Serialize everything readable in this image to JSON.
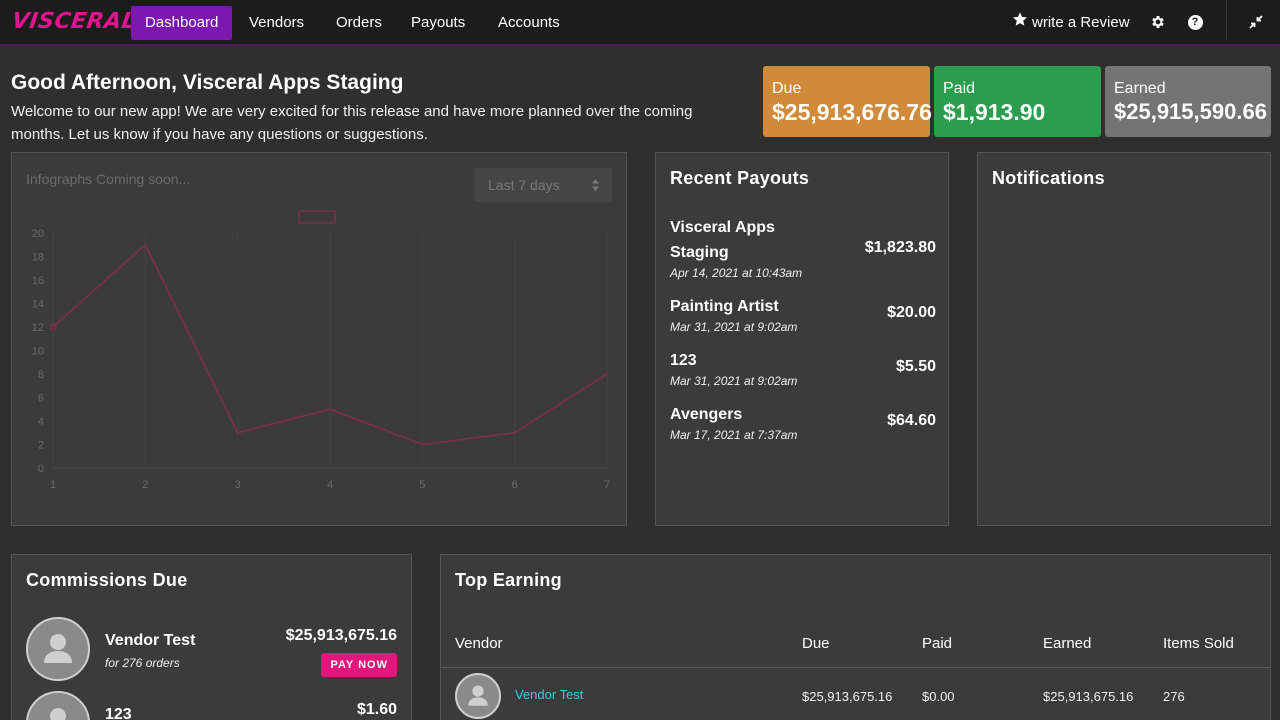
{
  "nav": {
    "logo": "VISCERAL",
    "links": [
      {
        "label": "Dashboard",
        "active": true
      },
      {
        "label": "Vendors",
        "active": false
      },
      {
        "label": "Orders",
        "active": false
      },
      {
        "label": "Payouts",
        "active": false
      },
      {
        "label": "Accounts",
        "active": false
      }
    ],
    "review_label": "write a Review",
    "icons": [
      "star-icon",
      "gear-icon",
      "help-icon",
      "compress-icon"
    ]
  },
  "greeting": {
    "title": "Good Afternoon, Visceral Apps Staging",
    "text": "Welcome to our new app! We are very excited for this release and have more planned over the coming months. Let us know if you have any questions or suggestions."
  },
  "stats": {
    "due": {
      "label": "Due",
      "value": "$25,913,676.76",
      "color": "#d1893a"
    },
    "paid": {
      "label": "Paid",
      "value": "$1,913.90",
      "color": "#2a9d4e"
    },
    "earned": {
      "label": "Earned",
      "value": "$25,915,590.66",
      "color": "#747474"
    }
  },
  "chart_card": {
    "title": "Infographs Coming soon...",
    "range_select": "Last 7 days"
  },
  "chart_data": {
    "type": "line",
    "x": [
      1,
      2,
      3,
      4,
      5,
      6,
      7
    ],
    "series": [
      {
        "values": [
          12,
          19,
          3,
          5,
          2,
          3,
          8
        ],
        "color": "#7a2e4c"
      }
    ],
    "yticks": [
      0,
      2,
      4,
      6,
      8,
      10,
      12,
      14,
      16,
      18,
      20
    ],
    "xticks": [
      1,
      2,
      3,
      4,
      5,
      6,
      7
    ],
    "ylim": [
      0,
      20
    ],
    "grid": true,
    "legend": "top-center"
  },
  "recent_payouts": {
    "title": "Recent Payouts",
    "items": [
      {
        "name": "Visceral Apps Staging",
        "date": "Apr 14, 2021 at 10:43am",
        "amount": "$1,823.80"
      },
      {
        "name": "Painting Artist",
        "date": "Mar 31, 2021 at 9:02am",
        "amount": "$20.00"
      },
      {
        "name": "123",
        "date": "Mar 31, 2021 at 9:02am",
        "amount": "$5.50"
      },
      {
        "name": "Avengers",
        "date": "Mar 17, 2021 at 7:37am",
        "amount": "$64.60"
      }
    ]
  },
  "notifications": {
    "title": "Notifications"
  },
  "commissions": {
    "title": "Commissions Due",
    "items": [
      {
        "name": "Vendor Test",
        "sub": "for 276 orders",
        "amount": "$25,913,675.16",
        "button": "PAY NOW"
      },
      {
        "name": "123",
        "sub": "",
        "amount": "$1.60"
      }
    ]
  },
  "top_earning": {
    "title": "Top Earning",
    "columns": [
      "Vendor",
      "Due",
      "Paid",
      "Earned",
      "Items Sold"
    ],
    "rows": [
      {
        "vendor": "Vendor Test",
        "due": "$25,913,675.16",
        "paid": "$0.00",
        "earned": "$25,913,675.16",
        "items_sold": "276"
      }
    ]
  }
}
